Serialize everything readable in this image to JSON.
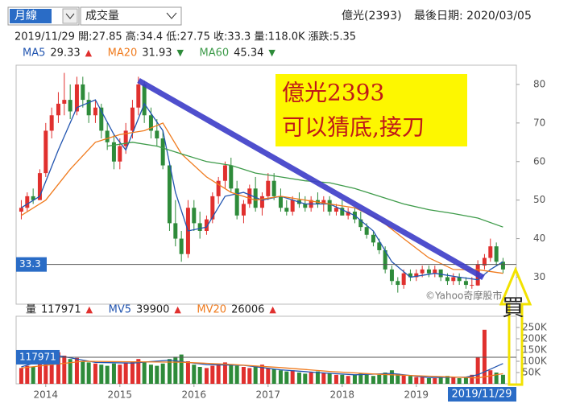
{
  "controls": {
    "period": "月線",
    "indicator": "成交量"
  },
  "header": {
    "stock": "億光(2393)",
    "last_date": "最後日期: 2020/03/05",
    "info": "2019/11/29 開:27.85 高:34.4 低:27.75 收:33.3 量:118.0K 漲跌:5.35"
  },
  "annotations": {
    "note_lines": [
      "億光2393",
      "可以猜底,接刀"
    ],
    "watermark": "©Yahoo奇摩股市",
    "buy": "買",
    "selected_date": "2019/11/29"
  },
  "chart_data": [
    {
      "type": "candlestick",
      "up_color": "#e0302e",
      "down_color": "#2e8b3a",
      "x": [
        2013.67,
        2013.75,
        2013.83,
        2013.92,
        2014,
        2014.08,
        2014.17,
        2014.25,
        2014.33,
        2014.42,
        2014.5,
        2014.58,
        2014.67,
        2014.75,
        2014.83,
        2014.92,
        2015,
        2015.08,
        2015.17,
        2015.25,
        2015.33,
        2015.42,
        2015.5,
        2015.58,
        2015.67,
        2015.75,
        2015.83,
        2015.92,
        2016,
        2016.08,
        2016.17,
        2016.25,
        2016.33,
        2016.42,
        2016.5,
        2016.58,
        2016.67,
        2016.75,
        2016.83,
        2016.92,
        2017,
        2017.08,
        2017.17,
        2017.25,
        2017.33,
        2017.42,
        2017.5,
        2017.58,
        2017.67,
        2017.75,
        2017.83,
        2017.92,
        2018,
        2018.08,
        2018.17,
        2018.25,
        2018.33,
        2018.42,
        2018.5,
        2018.58,
        2018.67,
        2018.75,
        2018.83,
        2018.92,
        2019,
        2019.08,
        2019.17,
        2019.25,
        2019.33,
        2019.42,
        2019.5,
        2019.58,
        2019.67,
        2019.75,
        2019.83,
        2019.92,
        2020,
        2020.08,
        2020.17
      ],
      "open": [
        47,
        48,
        51,
        50,
        57,
        68,
        72,
        75,
        76,
        73,
        80,
        76,
        72,
        74,
        68,
        65,
        60,
        64,
        68,
        74,
        80,
        72,
        68,
        66,
        59,
        44,
        40,
        36,
        48,
        44,
        42,
        45,
        51,
        55,
        59,
        53,
        46,
        49,
        53,
        48,
        51,
        55,
        51,
        48,
        47,
        50,
        49,
        48,
        50,
        49,
        50,
        47,
        48,
        46,
        47,
        45,
        43,
        41,
        39,
        37,
        32,
        29,
        28,
        31,
        30,
        31,
        32,
        31,
        32,
        30,
        29,
        30,
        29,
        28,
        27.85,
        33,
        35,
        38,
        34
      ],
      "high": [
        50,
        52,
        53,
        58,
        70,
        74,
        78,
        83,
        80,
        82,
        82,
        78,
        76,
        75,
        70,
        67,
        66,
        70,
        76,
        82,
        81,
        74,
        71,
        68,
        60,
        50,
        42,
        50,
        50,
        47,
        46,
        52,
        56,
        60,
        61,
        55,
        50,
        54,
        56,
        52,
        57,
        57,
        53,
        50,
        51,
        52,
        51,
        51,
        52,
        51,
        51,
        49,
        50,
        48,
        48,
        47,
        44,
        42,
        40,
        38,
        33,
        30,
        32,
        32,
        32,
        33,
        33,
        33,
        32,
        31,
        31,
        31,
        30,
        30,
        34.4,
        36,
        40,
        39,
        35
      ],
      "low": [
        45,
        47,
        49,
        50,
        56,
        66,
        70,
        72,
        71,
        72,
        74,
        70,
        70,
        66,
        63,
        58,
        58,
        62,
        66,
        72,
        70,
        66,
        64,
        58,
        42,
        38,
        34,
        35,
        42,
        40,
        41,
        44,
        49,
        53,
        52,
        45,
        44,
        48,
        47,
        46,
        50,
        50,
        47,
        46,
        46,
        48,
        47,
        47,
        48,
        47,
        46,
        46,
        46,
        45,
        44,
        42,
        40,
        38,
        36,
        31,
        28,
        26,
        27,
        29,
        29,
        30,
        30,
        30,
        29,
        28,
        28,
        28,
        27,
        27,
        27.75,
        32,
        34,
        33,
        31
      ],
      "close": [
        48,
        51,
        50,
        57,
        68,
        72,
        75,
        76,
        73,
        80,
        76,
        72,
        74,
        68,
        65,
        60,
        64,
        68,
        74,
        80,
        72,
        68,
        66,
        59,
        44,
        40,
        36,
        48,
        44,
        42,
        45,
        51,
        55,
        59,
        53,
        46,
        49,
        53,
        48,
        51,
        55,
        51,
        48,
        47,
        50,
        49,
        48,
        50,
        49,
        50,
        47,
        48,
        46,
        47,
        45,
        43,
        41,
        39,
        37,
        32,
        29,
        28,
        31,
        30,
        31,
        32,
        31,
        32,
        30,
        29,
        30,
        29,
        28,
        28,
        33.3,
        35,
        38,
        34,
        32
      ],
      "series": [
        {
          "name": "MA5",
          "color": "#2255b0",
          "last": 29.33,
          "trend": "▲",
          "x": [
            2013.67,
            2013.92,
            2014.17,
            2014.42,
            2014.67,
            2014.92,
            2015.08,
            2015.33,
            2015.58,
            2015.75,
            2015.92,
            2016.17,
            2016.42,
            2016.67,
            2016.92,
            2017.17,
            2017.5,
            2017.83,
            2018.17,
            2018.42,
            2018.67,
            2018.92,
            2019.25,
            2019.58,
            2019.83,
            2020,
            2020.17
          ],
          "values": [
            48,
            51,
            63,
            74,
            76,
            67,
            63,
            75,
            68,
            52,
            42,
            43,
            51,
            52,
            50,
            51,
            49,
            49,
            46,
            42,
            34,
            30,
            31,
            30,
            29.33,
            32,
            34
          ]
        },
        {
          "name": "MA20",
          "color": "#f07b1e",
          "last": 31.93,
          "trend": "▼",
          "x": [
            2013.67,
            2014,
            2014.33,
            2014.67,
            2015,
            2015.33,
            2015.58,
            2015.83,
            2016.17,
            2016.5,
            2016.83,
            2017.17,
            2017.5,
            2017.83,
            2018.17,
            2018.5,
            2018.83,
            2019.17,
            2019.5,
            2019.83,
            2020.17
          ],
          "values": [
            46,
            50,
            58,
            65,
            67,
            68,
            70,
            62,
            56,
            52,
            50,
            51,
            50,
            49,
            48,
            45,
            40,
            35,
            32,
            31.93,
            31
          ]
        },
        {
          "name": "MA60",
          "color": "#3e9b4a",
          "last": 45.34,
          "trend": "▼",
          "x": [
            2014.83,
            2015.17,
            2015.5,
            2015.83,
            2016.17,
            2016.5,
            2016.83,
            2017.17,
            2017.5,
            2017.83,
            2018.17,
            2018.5,
            2018.83,
            2019.17,
            2019.5,
            2019.83,
            2020.17
          ],
          "values": [
            64,
            65,
            64,
            62,
            60,
            59,
            57,
            56,
            55,
            54.5,
            53,
            51,
            49,
            47.5,
            46.5,
            45.34,
            43
          ]
        }
      ],
      "xlim": [
        2013.6,
        2020.35
      ],
      "xticks": [
        2014,
        2015,
        2016,
        2017,
        2018,
        2019
      ],
      "ylim": [
        23,
        85
      ],
      "yticks": [
        30,
        40,
        50,
        60,
        70,
        80
      ]
    },
    {
      "type": "bar",
      "name": "量",
      "current": 117971,
      "trend": "▲",
      "values": [
        70000,
        80000,
        75000,
        95000,
        130000,
        120000,
        140000,
        125000,
        110000,
        115000,
        100000,
        95000,
        90000,
        85000,
        80000,
        90000,
        85000,
        95000,
        100000,
        110000,
        95000,
        85000,
        80000,
        90000,
        110000,
        120000,
        130000,
        100000,
        85000,
        75000,
        70000,
        80000,
        90000,
        95000,
        85000,
        80000,
        75000,
        70000,
        80000,
        85000,
        70000,
        65000,
        60000,
        55000,
        60000,
        50000,
        45000,
        50000,
        55000,
        50000,
        45000,
        40000,
        40000,
        35000,
        40000,
        45000,
        40000,
        35000,
        40000,
        50000,
        60000,
        45000,
        40000,
        35000,
        30000,
        30000,
        25000,
        25000,
        30000,
        35000,
        30000,
        25000,
        30000,
        40000,
        117971,
        240000,
        60000,
        50000,
        40000
      ],
      "series": [
        {
          "name": "MV5",
          "color": "#2255b0",
          "last": 39900,
          "trend": "▲",
          "x": [
            2013.67,
            2014.17,
            2014.67,
            2015.17,
            2015.67,
            2016.17,
            2016.67,
            2017.17,
            2017.67,
            2018.17,
            2018.67,
            2019.17,
            2019.67,
            2019.83,
            2020.17
          ],
          "values": [
            75000,
            125000,
            95000,
            92000,
            105000,
            85000,
            82000,
            62000,
            50000,
            40000,
            46000,
            28000,
            30000,
            39900,
            90000
          ]
        },
        {
          "name": "MV20",
          "color": "#f07b1e",
          "last": 26006,
          "trend": "▲",
          "x": [
            2013.67,
            2014.5,
            2015.17,
            2015.83,
            2016.5,
            2017.17,
            2017.83,
            2018.5,
            2019.17,
            2019.83,
            2020.17
          ],
          "values": [
            70000,
            100000,
            98000,
            96000,
            86000,
            72000,
            55000,
            42000,
            34000,
            26006,
            45000
          ]
        }
      ],
      "ylim": [
        0,
        300000
      ],
      "yticks": [
        {
          "value": 50000,
          "label": "50K"
        },
        {
          "value": 100000,
          "label": "100K"
        },
        {
          "value": 150000,
          "label": "150K"
        },
        {
          "value": 200000,
          "label": "200K"
        },
        {
          "value": 250000,
          "label": "250K"
        }
      ]
    }
  ]
}
